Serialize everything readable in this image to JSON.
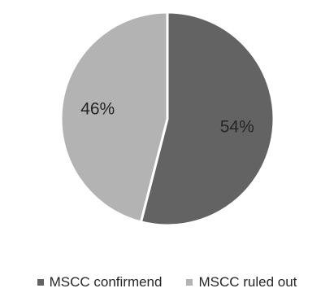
{
  "chart_data": {
    "type": "pie",
    "slices": [
      {
        "label": "MSCC confirmend",
        "value": 54,
        "data_label": "54%",
        "color": "#636363"
      },
      {
        "label": "MSCC ruled out",
        "value": 46,
        "data_label": "46%",
        "color": "#b3b3b3"
      }
    ],
    "start_angle_deg": 0,
    "direction": "clockwise",
    "slice_border_color": "#ffffff",
    "label_color": "#262626",
    "legend": {
      "position": "bottom",
      "items": [
        {
          "label": "MSCC confirmend",
          "color": "#636363"
        },
        {
          "label": "MSCC ruled out",
          "color": "#b3b3b3"
        }
      ]
    }
  }
}
